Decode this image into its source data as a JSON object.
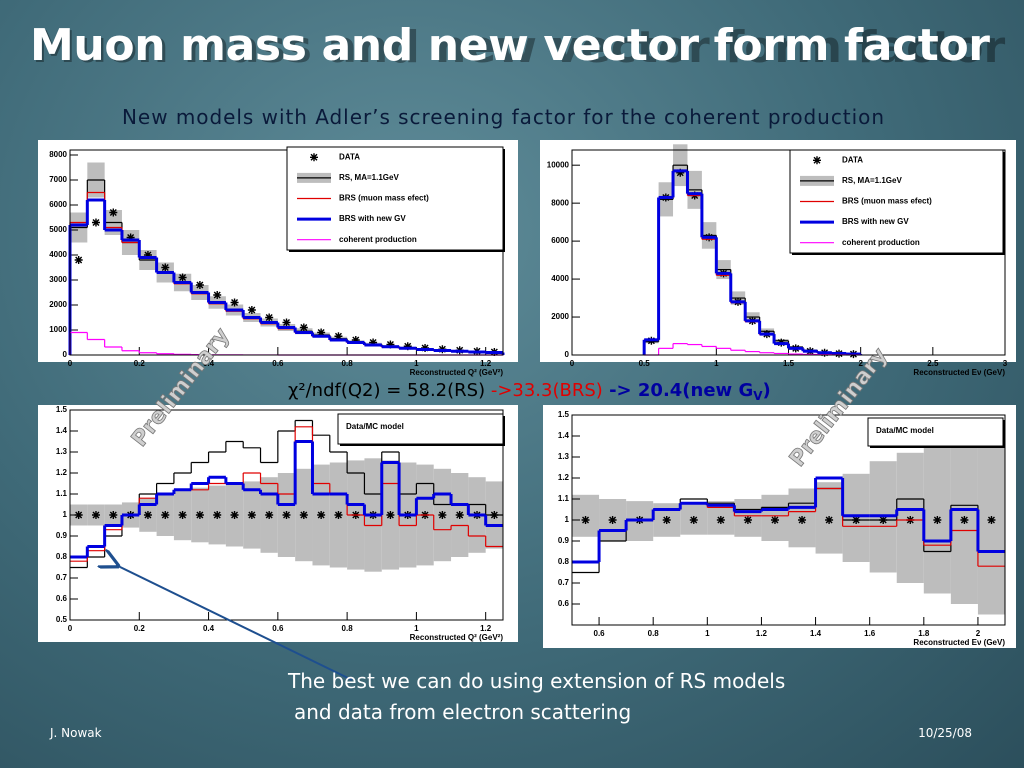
{
  "title": "Muon mass and new vector form factor",
  "subtitle": "New  models with Adler’s screening factor for the coherent production",
  "chi2": {
    "rs": "χ²/ndf(Q2) = 58.2(RS) ",
    "brs": "->33.3(BRS)",
    "new": " -> 20.4(new G",
    "new_sub": "V",
    "new_end": ")"
  },
  "watermark": [
    "Preliminary",
    "Preliminary"
  ],
  "note": [
    "The best we can do using extension of RS  models",
    "and data from electron scattering"
  ],
  "footer": {
    "author": "J. Nowak",
    "date": "10/25/08"
  },
  "chart_data": [
    {
      "type": "histogram",
      "xlabel": "Reconstructed Q² (GeV²)",
      "bins": [
        0,
        0.05,
        0.1,
        0.15,
        0.2,
        0.25,
        0.3,
        0.35,
        0.4,
        0.45,
        0.5,
        0.55,
        0.6,
        0.65,
        0.7,
        0.75,
        0.8,
        0.85,
        0.9,
        0.95,
        1.0,
        1.05,
        1.1,
        1.15,
        1.2,
        1.25
      ],
      "xlim": [
        0,
        1.25
      ],
      "xticks": [
        0,
        0.2,
        0.4,
        0.6,
        0.8,
        1,
        1.2
      ],
      "ylim": [
        0,
        8200
      ],
      "yticks": [
        0,
        1000,
        2000,
        3000,
        4000,
        5000,
        6000,
        7000,
        8000
      ],
      "band": {
        "color": "#bdbdbd",
        "low": [
          4500,
          6300,
          4800,
          4000,
          3400,
          2900,
          2550,
          2200,
          1850,
          1580,
          1320,
          1140,
          960,
          830,
          700,
          570,
          450,
          370,
          300,
          250,
          205,
          165,
          135,
          110,
          85
        ],
        "high": [
          5700,
          7700,
          5800,
          5000,
          4200,
          3700,
          3250,
          2800,
          2350,
          2020,
          1680,
          1460,
          1240,
          1070,
          900,
          730,
          590,
          490,
          400,
          330,
          275,
          215,
          185,
          150,
          115
        ]
      },
      "series": [
        {
          "name": "DATA",
          "color": "#000000",
          "marker": "star",
          "values": [
            3800,
            5300,
            5700,
            4700,
            4000,
            3500,
            3100,
            2800,
            2400,
            2100,
            1800,
            1500,
            1300,
            1100,
            900,
            750,
            600,
            500,
            420,
            350,
            280,
            230,
            190,
            150,
            120
          ]
        },
        {
          "name": "RS, MA=1.1GeV",
          "color": "#000000",
          "width": 1.2,
          "values": [
            5100,
            7000,
            5300,
            4500,
            3800,
            3300,
            2900,
            2500,
            2100,
            1800,
            1500,
            1300,
            1100,
            950,
            800,
            650,
            520,
            430,
            350,
            290,
            240,
            190,
            160,
            130,
            100
          ]
        },
        {
          "name": "BRS (muon mass efect)",
          "color": "#e00000",
          "width": 1.2,
          "values": [
            5300,
            6500,
            5100,
            4500,
            3900,
            3300,
            2850,
            2450,
            2050,
            1750,
            1450,
            1250,
            1050,
            880,
            730,
            590,
            480,
            390,
            310,
            250,
            200,
            160,
            130,
            100,
            80
          ]
        },
        {
          "name": "BRS with new GV",
          "color": "#0000e0",
          "width": 3,
          "values": [
            5200,
            6200,
            5000,
            4600,
            3900,
            3300,
            2900,
            2500,
            2100,
            1800,
            1500,
            1300,
            1100,
            900,
            750,
            600,
            500,
            400,
            330,
            270,
            220,
            180,
            150,
            120,
            100
          ]
        },
        {
          "name": "coherent production",
          "color": "#ff00ff",
          "width": 1.2,
          "values": [
            900,
            620,
            320,
            170,
            90,
            50,
            25,
            15,
            8,
            5,
            3,
            2,
            1,
            1,
            0,
            0,
            0,
            0,
            0,
            0,
            0,
            0,
            0,
            0,
            0
          ]
        }
      ]
    },
    {
      "type": "histogram",
      "xlabel": "Reconstructed Eν (GeV)",
      "bins": [
        0.5,
        0.6,
        0.7,
        0.8,
        0.9,
        1.0,
        1.1,
        1.2,
        1.3,
        1.4,
        1.5,
        1.6,
        1.7,
        1.8,
        1.9,
        2.0
      ],
      "xlim": [
        0,
        3
      ],
      "xticks": [
        0,
        0.5,
        1,
        1.5,
        2,
        2.5,
        3
      ],
      "ylim": [
        0,
        10800
      ],
      "yticks": [
        0,
        2000,
        4000,
        6000,
        8000,
        10000
      ],
      "band": {
        "color": "#bdbdbd",
        "low": [
          620,
          7300,
          8900,
          7700,
          5600,
          4000,
          2650,
          1750,
          1100,
          660,
          370,
          220,
          130,
          80,
          48
        ],
        "high": [
          780,
          9100,
          11100,
          9700,
          7000,
          5000,
          3350,
          2250,
          1400,
          840,
          470,
          280,
          170,
          100,
          62
        ]
      },
      "series": [
        {
          "name": "DATA",
          "color": "#000000",
          "marker": "star",
          "values": [
            750,
            8300,
            9600,
            8400,
            6200,
            4300,
            2800,
            1800,
            1100,
            650,
            350,
            200,
            120,
            75,
            45
          ]
        },
        {
          "name": "RS, MA=1.1GeV",
          "color": "#000000",
          "width": 1.2,
          "values": [
            700,
            8200,
            10000,
            8700,
            6300,
            4500,
            3000,
            2000,
            1250,
            750,
            420,
            250,
            150,
            90,
            55
          ]
        },
        {
          "name": "BRS (muon mass efect)",
          "color": "#e00000",
          "width": 1.2,
          "values": [
            800,
            8300,
            9700,
            8400,
            6100,
            4200,
            2750,
            1750,
            1070,
            620,
            340,
            200,
            115,
            70,
            45
          ]
        },
        {
          "name": "BRS with new GV",
          "color": "#0000e0",
          "width": 3,
          "values": [
            800,
            8300,
            9700,
            8500,
            6200,
            4300,
            2800,
            1800,
            1100,
            600,
            350,
            200,
            120,
            80,
            50
          ]
        },
        {
          "name": "coherent production",
          "color": "#ff00ff",
          "width": 1.2,
          "values": [
            0,
            350,
            600,
            550,
            450,
            350,
            250,
            180,
            120,
            80,
            50,
            30,
            20,
            10,
            5
          ]
        }
      ]
    },
    {
      "type": "histogram",
      "xlabel": "Reconstructed Q² (GeV²)",
      "legend_title": "Data/MC model",
      "bins": [
        0,
        0.05,
        0.1,
        0.15,
        0.2,
        0.25,
        0.3,
        0.35,
        0.4,
        0.45,
        0.5,
        0.55,
        0.6,
        0.65,
        0.7,
        0.75,
        0.8,
        0.85,
        0.9,
        0.95,
        1.0,
        1.05,
        1.1,
        1.15,
        1.2,
        1.25
      ],
      "xlim": [
        0,
        1.25
      ],
      "xticks": [
        0,
        0.2,
        0.4,
        0.6,
        0.8,
        1,
        1.2
      ],
      "ylim": [
        0.5,
        1.5
      ],
      "yticks": [
        0.5,
        0.6,
        0.7,
        0.8,
        0.9,
        1,
        1.1,
        1.2,
        1.3,
        1.4,
        1.5
      ],
      "band": {
        "color": "#bdbdbd",
        "low": [
          0.95,
          0.95,
          0.95,
          0.94,
          0.92,
          0.9,
          0.88,
          0.87,
          0.86,
          0.85,
          0.84,
          0.82,
          0.8,
          0.78,
          0.76,
          0.75,
          0.74,
          0.73,
          0.74,
          0.75,
          0.76,
          0.78,
          0.8,
          0.82,
          0.84
        ],
        "high": [
          1.05,
          1.05,
          1.05,
          1.06,
          1.08,
          1.1,
          1.12,
          1.13,
          1.14,
          1.15,
          1.16,
          1.18,
          1.2,
          1.22,
          1.24,
          1.25,
          1.26,
          1.27,
          1.26,
          1.25,
          1.24,
          1.22,
          1.2,
          1.18,
          1.16
        ]
      },
      "series": [
        {
          "color": "#000000",
          "marker": "star",
          "values": [
            1,
            1,
            1,
            1,
            1,
            1,
            1,
            1,
            1,
            1,
            1,
            1,
            1,
            1,
            1,
            1,
            1,
            1,
            1,
            1,
            1,
            1,
            1,
            1,
            1
          ]
        },
        {
          "color": "#000000",
          "width": 1.2,
          "values": [
            0.75,
            0.8,
            0.9,
            1.0,
            1.1,
            1.15,
            1.2,
            1.25,
            1.3,
            1.35,
            1.32,
            1.25,
            1.4,
            1.45,
            1.38,
            1.3,
            1.2,
            1.1,
            1.3,
            1.1,
            1.15,
            1.05,
            1.05,
            1.05,
            1.0
          ]
        },
        {
          "color": "#e00000",
          "width": 1.2,
          "values": [
            0.78,
            0.83,
            0.93,
            1.0,
            1.08,
            1.1,
            1.12,
            1.12,
            1.15,
            1.15,
            1.2,
            1.15,
            1.1,
            1.42,
            1.15,
            1.1,
            1.0,
            0.95,
            1.15,
            0.95,
            1.0,
            0.93,
            0.95,
            0.9,
            0.85
          ]
        },
        {
          "color": "#0000e0",
          "width": 3,
          "values": [
            0.8,
            0.85,
            0.95,
            1.0,
            1.05,
            1.1,
            1.12,
            1.15,
            1.18,
            1.15,
            1.12,
            1.1,
            1.05,
            1.35,
            1.1,
            1.1,
            1.05,
            1.0,
            1.25,
            1.0,
            1.08,
            1.1,
            1.05,
            1.0,
            0.95
          ]
        }
      ]
    },
    {
      "type": "histogram",
      "xlabel": "Reconstructed Eν (GeV)",
      "legend_title": "Data/MC model",
      "bins": [
        0.5,
        0.6,
        0.7,
        0.8,
        0.9,
        1.0,
        1.1,
        1.2,
        1.3,
        1.4,
        1.5,
        1.6,
        1.7,
        1.8,
        1.9,
        2.0,
        2.1
      ],
      "xlim": [
        0.5,
        2.1
      ],
      "xticks": [
        0.6,
        0.8,
        1,
        1.2,
        1.4,
        1.6,
        1.8,
        2
      ],
      "ylim": [
        0.5,
        1.5
      ],
      "yticks": [
        0.6,
        0.7,
        0.8,
        0.9,
        1,
        1.1,
        1.2,
        1.3,
        1.4,
        1.5
      ],
      "band": {
        "color": "#bdbdbd",
        "low": [
          0.92,
          0.9,
          0.9,
          0.92,
          0.93,
          0.93,
          0.92,
          0.9,
          0.87,
          0.84,
          0.8,
          0.75,
          0.7,
          0.65,
          0.6,
          0.55
        ],
        "high": [
          1.12,
          1.1,
          1.09,
          1.08,
          1.08,
          1.09,
          1.1,
          1.12,
          1.15,
          1.18,
          1.22,
          1.28,
          1.32,
          1.37,
          1.4,
          1.45
        ]
      },
      "series": [
        {
          "color": "#000000",
          "marker": "star",
          "values": [
            1,
            1,
            1,
            1,
            1,
            1,
            1,
            1,
            1,
            1,
            1,
            1,
            1,
            1,
            1,
            1
          ]
        },
        {
          "color": "#000000",
          "width": 1.2,
          "values": [
            0.75,
            0.9,
            1.0,
            1.05,
            1.1,
            1.08,
            1.05,
            1.06,
            1.08,
            1.15,
            1.0,
            1.0,
            1.1,
            0.85,
            1.07,
            0.85
          ]
        },
        {
          "color": "#e00000",
          "width": 1.2,
          "values": [
            0.8,
            0.95,
            1.0,
            1.05,
            1.08,
            1.06,
            1.02,
            1.02,
            1.04,
            1.15,
            0.97,
            0.97,
            1.0,
            0.88,
            0.95,
            0.78
          ]
        },
        {
          "color": "#0000e0",
          "width": 3,
          "values": [
            0.8,
            0.95,
            1.0,
            1.05,
            1.08,
            1.07,
            1.04,
            1.05,
            1.06,
            1.2,
            1.02,
            1.02,
            1.05,
            0.9,
            1.05,
            0.85
          ]
        }
      ]
    }
  ]
}
